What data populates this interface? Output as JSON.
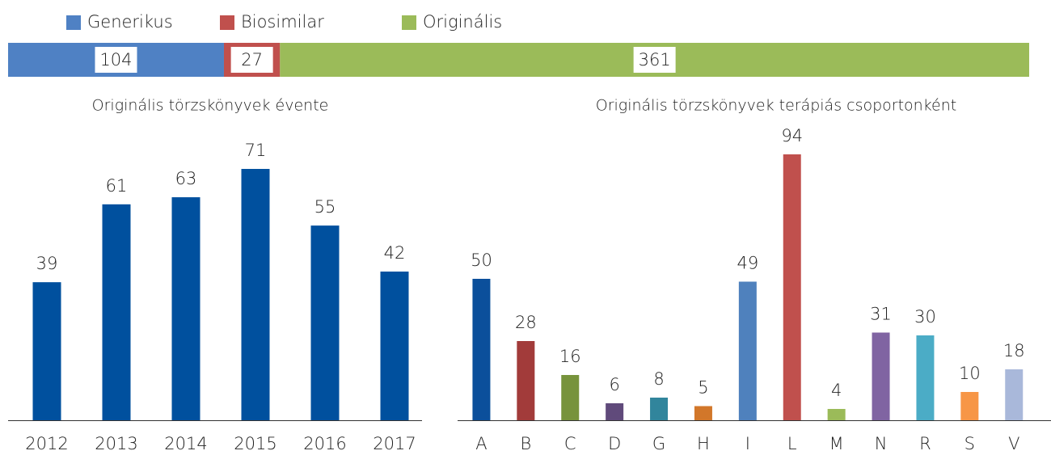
{
  "chart_data": [
    {
      "type": "stacked-hbar",
      "series": [
        {
          "name": "Generikus",
          "color": "#4f81c4",
          "values": [
            104
          ]
        },
        {
          "name": "Biosimilar",
          "color": "#c0504d",
          "values": [
            27
          ]
        },
        {
          "name": "Originális",
          "color": "#9bbb59",
          "values": [
            361
          ]
        }
      ]
    },
    {
      "type": "bar",
      "title": "Originális törzskönyvek évente",
      "categories": [
        "2012",
        "2013",
        "2014",
        "2015",
        "2016",
        "2017"
      ],
      "values": [
        39,
        61,
        63,
        71,
        55,
        42
      ],
      "color": "#00509e"
    },
    {
      "type": "bar",
      "title": "Originális törzskönyvek terápiás csoportonként",
      "categories": [
        "A",
        "B",
        "C",
        "D",
        "G",
        "H",
        "I",
        "L",
        "M",
        "N",
        "R",
        "S",
        "V"
      ],
      "values": [
        50,
        28,
        16,
        6,
        8,
        5,
        49,
        94,
        4,
        31,
        30,
        10,
        18
      ],
      "colors": [
        "#0b4f9b",
        "#a23b3a",
        "#77933c",
        "#604a7b",
        "#31859c",
        "#d2772a",
        "#4f81bd",
        "#c0504d",
        "#9bbb59",
        "#8064a2",
        "#4bacc6",
        "#f79646",
        "#a9b8da"
      ]
    }
  ]
}
